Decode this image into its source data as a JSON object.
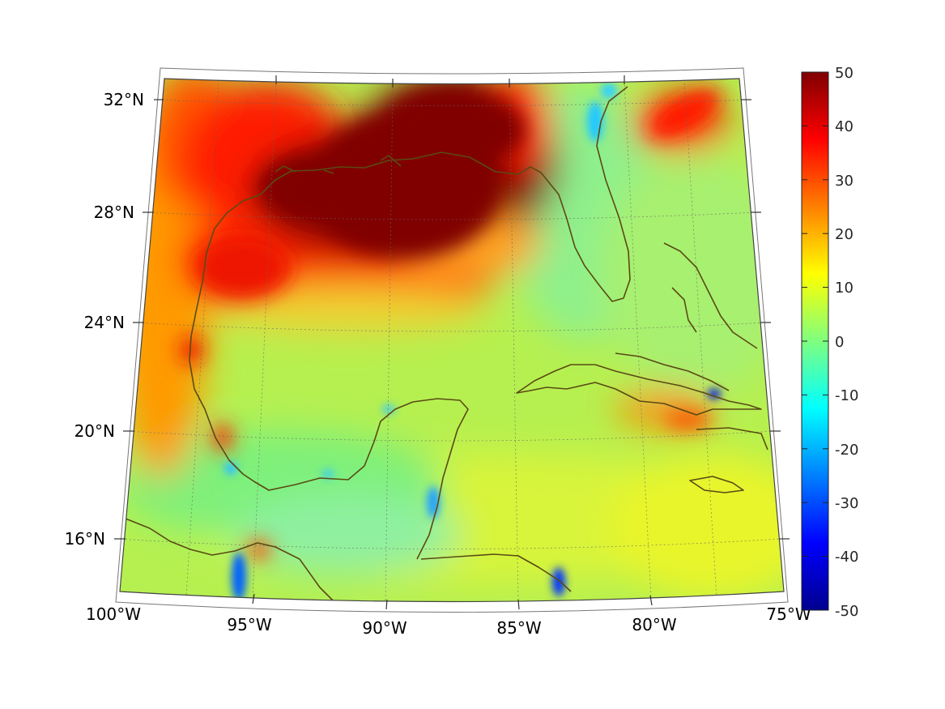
{
  "map": {
    "region": "Gulf of Mexico and Caribbean",
    "lon_range": [
      -100,
      -75
    ],
    "lat_range": [
      14.5,
      33
    ],
    "lat_labels": [
      "32°N",
      "28°N",
      "24°N",
      "20°N",
      "16°N"
    ],
    "lon_labels": [
      "100°W",
      "95°W",
      "90°W",
      "85°W",
      "80°W",
      "75°W"
    ],
    "grid": true,
    "coastline_color": "#5a4a14"
  },
  "colorbar": {
    "colormap": "jet",
    "min": -50,
    "max": 50,
    "ticks": [
      "50",
      "40",
      "30",
      "20",
      "10",
      "0",
      "-10",
      "-20",
      "-30",
      "-40",
      "-50"
    ],
    "placement": "right"
  },
  "colors": {
    "background": "#ffffff",
    "field_base": "#b6f050"
  }
}
